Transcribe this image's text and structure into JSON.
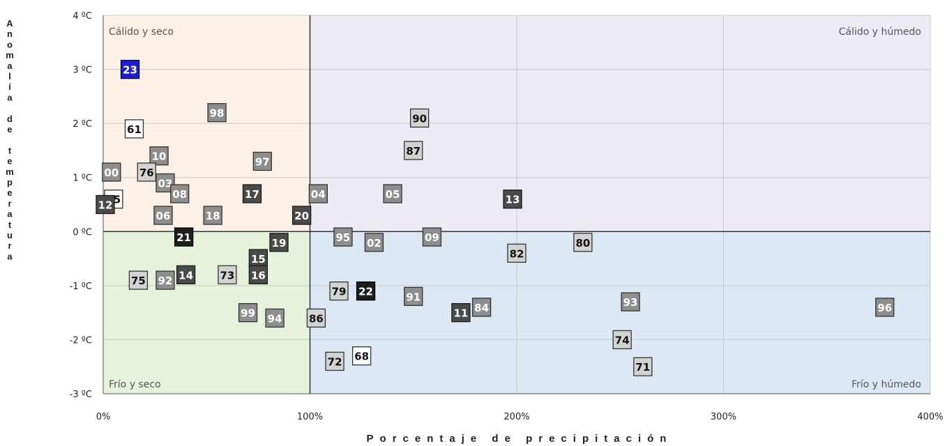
{
  "chart_data": {
    "type": "scatter",
    "xlabel": "Porcentaje de precipitación",
    "ylabel": "Anomalía de temperatura",
    "xlim": [
      0,
      400
    ],
    "ylim": [
      -3,
      4
    ],
    "x_ticks": [
      "0%",
      "100%",
      "200%",
      "300%",
      "400%"
    ],
    "y_ticks": [
      "4 ºC",
      "3 ºC",
      "2 ºC",
      "1 ºC",
      "0 ºC",
      "-1 ºC",
      "-2 ºC",
      "-3 ºC"
    ],
    "quadrants": {
      "warm_dry": {
        "label": "Cálido y seco",
        "color": "#fdf1e7"
      },
      "warm_wet": {
        "label": "Cálido y húmedo",
        "color": "#eeebf4"
      },
      "cold_dry": {
        "label": "Frío y seco",
        "color": "#e7f2dc"
      },
      "cold_wet": {
        "label": "Frío y húmedo",
        "color": "#dde8f5"
      }
    },
    "grid": true,
    "points": [
      {
        "label": "23",
        "x": 13,
        "y": 3.0,
        "style": "blue"
      },
      {
        "label": "98",
        "x": 55,
        "y": 2.2,
        "style": "gray"
      },
      {
        "label": "61",
        "x": 15,
        "y": 1.9,
        "style": "white"
      },
      {
        "label": "90",
        "x": 153,
        "y": 2.1,
        "style": "light"
      },
      {
        "label": "87",
        "x": 150,
        "y": 1.5,
        "style": "light"
      },
      {
        "label": "10",
        "x": 27,
        "y": 1.4,
        "style": "gray"
      },
      {
        "label": "97",
        "x": 77,
        "y": 1.3,
        "style": "gray"
      },
      {
        "label": "00",
        "x": 4,
        "y": 1.1,
        "style": "gray"
      },
      {
        "label": "76",
        "x": 21,
        "y": 1.1,
        "style": "light"
      },
      {
        "label": "03",
        "x": 30,
        "y": 0.9,
        "style": "gray"
      },
      {
        "label": "08",
        "x": 37,
        "y": 0.7,
        "style": "gray"
      },
      {
        "label": "17",
        "x": 72,
        "y": 0.7,
        "style": "dark"
      },
      {
        "label": "04",
        "x": 104,
        "y": 0.7,
        "style": "gray"
      },
      {
        "label": "05",
        "x": 140,
        "y": 0.7,
        "style": "gray"
      },
      {
        "label": "13",
        "x": 198,
        "y": 0.6,
        "style": "dark"
      },
      {
        "label": "15",
        "x": 5,
        "y": 0.6,
        "style": "white"
      },
      {
        "label": "12",
        "x": 1,
        "y": 0.5,
        "style": "dark"
      },
      {
        "label": "06",
        "x": 29,
        "y": 0.3,
        "style": "gray"
      },
      {
        "label": "18",
        "x": 53,
        "y": 0.3,
        "style": "gray"
      },
      {
        "label": "20",
        "x": 96,
        "y": 0.3,
        "style": "dark"
      },
      {
        "label": "21",
        "x": 39,
        "y": -0.1,
        "style": "black"
      },
      {
        "label": "95",
        "x": 116,
        "y": -0.1,
        "style": "gray"
      },
      {
        "label": "09",
        "x": 159,
        "y": -0.1,
        "style": "gray"
      },
      {
        "label": "02",
        "x": 131,
        "y": -0.2,
        "style": "gray"
      },
      {
        "label": "80",
        "x": 232,
        "y": -0.2,
        "style": "light"
      },
      {
        "label": "19",
        "x": 85,
        "y": -0.2,
        "style": "dark"
      },
      {
        "label": "82",
        "x": 200,
        "y": -0.4,
        "style": "light"
      },
      {
        "label": "15",
        "x": 75,
        "y": -0.5,
        "style": "dark"
      },
      {
        "label": "73",
        "x": 60,
        "y": -0.8,
        "style": "light"
      },
      {
        "label": "16",
        "x": 75,
        "y": -0.8,
        "style": "dark"
      },
      {
        "label": "14",
        "x": 40,
        "y": -0.8,
        "style": "dark"
      },
      {
        "label": "75",
        "x": 17,
        "y": -0.9,
        "style": "light"
      },
      {
        "label": "92",
        "x": 30,
        "y": -0.9,
        "style": "gray"
      },
      {
        "label": "79",
        "x": 114,
        "y": -1.1,
        "style": "light"
      },
      {
        "label": "22",
        "x": 127,
        "y": -1.1,
        "style": "black"
      },
      {
        "label": "91",
        "x": 150,
        "y": -1.2,
        "style": "gray"
      },
      {
        "label": "93",
        "x": 255,
        "y": -1.3,
        "style": "gray"
      },
      {
        "label": "96",
        "x": 378,
        "y": -1.4,
        "style": "gray"
      },
      {
        "label": "84",
        "x": 183,
        "y": -1.4,
        "style": "gray"
      },
      {
        "label": "11",
        "x": 173,
        "y": -1.5,
        "style": "dark"
      },
      {
        "label": "99",
        "x": 70,
        "y": -1.5,
        "style": "gray"
      },
      {
        "label": "94",
        "x": 83,
        "y": -1.6,
        "style": "gray"
      },
      {
        "label": "86",
        "x": 103,
        "y": -1.6,
        "style": "light"
      },
      {
        "label": "74",
        "x": 251,
        "y": -2.0,
        "style": "light"
      },
      {
        "label": "68",
        "x": 125,
        "y": -2.3,
        "style": "white"
      },
      {
        "label": "72",
        "x": 112,
        "y": -2.4,
        "style": "light"
      },
      {
        "label": "71",
        "x": 261,
        "y": -2.5,
        "style": "light"
      }
    ]
  }
}
